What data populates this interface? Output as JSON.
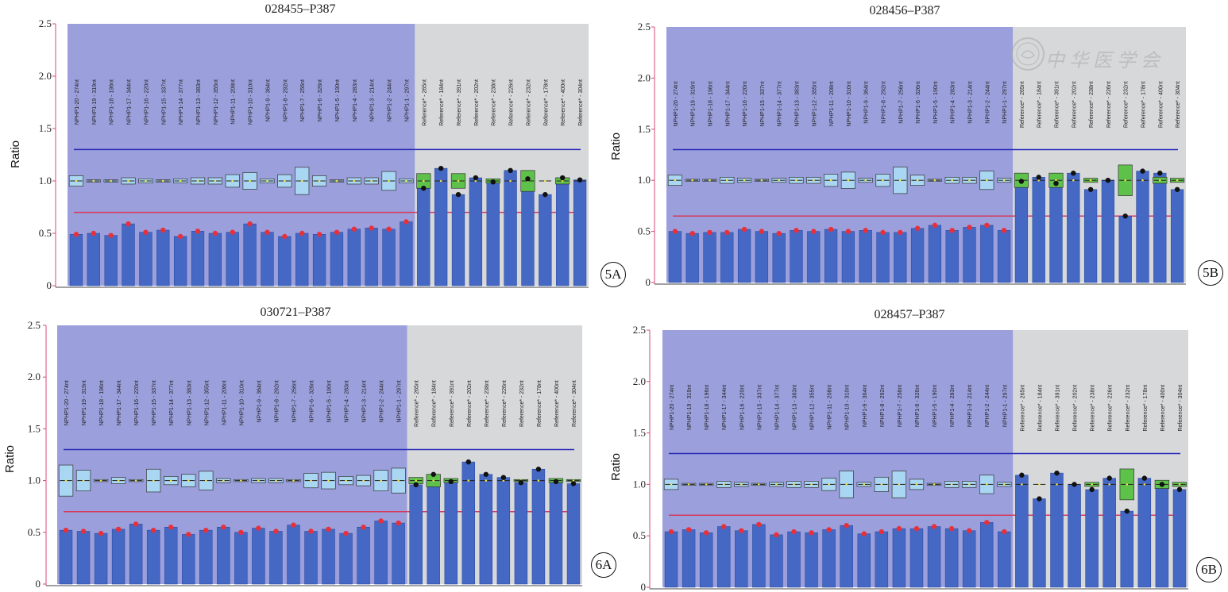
{
  "probe_labels": [
    "NPHP1-20 - 274nt",
    "NPHP1-19 - 319nt",
    "NPHP1-18 - 196nt",
    "NPHP1-17 - 344nt",
    "NPHP1-16 - 220nt",
    "NPHP1-15 - 337nt",
    "NPHP1-14 - 377nt",
    "NPHP1-13 - 383nt",
    "NPHP1-12 - 355nt",
    "NPHP1-11 - 208nt",
    "NPHP1-10 - 310nt",
    "NPHP1-9 - 364nt",
    "NPHP1-8 - 292nt",
    "NPHP1-7 - 256nt",
    "NPHP1-6 - 326nt",
    "NPHP1-5 - 190nt",
    "NPHP1-4 - 283nt",
    "NPHP1-3 - 214nt",
    "NPHP1-2 - 244nt",
    "NPHP1-1 - 297nt",
    "Reference* - 265nt",
    "Reference* - 184nt",
    "Reference* - 391nt",
    "Reference* - 202nt",
    "Reference* - 238nt",
    "Reference* - 226nt",
    "Reference* - 232nt",
    "Reference* - 178nt",
    "Reference* - 400nt",
    "Reference* - 304nt"
  ],
  "watermark": {
    "text": "中华医学会"
  },
  "colors": {
    "test_region": "#9b9fdb",
    "reference_region": "#d6d8da",
    "bar": "#4468c4",
    "upper_line": "#2b2bb8",
    "lower_line": "#d63a5a",
    "test_box": "#a9d6f2",
    "ref_box": "#5ec24a",
    "dot_test": "#e8303a",
    "dot_ref": "#111111"
  },
  "chart_data": [
    {
      "id": "5A",
      "type": "bar",
      "title": "028455–P387",
      "ylabel": "Ratio",
      "panel_label": "5A",
      "yticks": [
        "0",
        "0.5",
        "1.0",
        "1.5",
        "2.0",
        "2.5"
      ],
      "ylim": [
        0,
        2.5
      ],
      "upper_threshold": 1.3,
      "lower_threshold": 0.7,
      "n_test": 20,
      "values": [
        0.49,
        0.5,
        0.48,
        0.59,
        0.51,
        0.53,
        0.47,
        0.52,
        0.5,
        0.51,
        0.59,
        0.51,
        0.47,
        0.5,
        0.49,
        0.51,
        0.54,
        0.55,
        0.54,
        0.61,
        0.93,
        1.12,
        0.87,
        1.03,
        0.99,
        1.1,
        1.02,
        0.87,
        1.03,
        1.01
      ],
      "box_half": [
        0.05,
        0.01,
        0.01,
        0.03,
        0.02,
        0.01,
        0.02,
        0.03,
        0.03,
        0.06,
        0.08,
        0.02,
        0.06,
        0.13,
        0.05,
        0.01,
        0.03,
        0.03,
        0.09,
        0.02,
        0.07,
        0.0,
        0.07,
        0.0,
        0.02,
        0.0,
        0.1,
        0.0,
        0.03,
        0.0
      ]
    },
    {
      "id": "5B",
      "type": "bar",
      "title": "028456–P387",
      "ylabel": "Ratio",
      "panel_label": "5B",
      "yticks": [
        "0",
        "0.5",
        "1.0",
        "1.5",
        "2.0",
        "2.5"
      ],
      "ylim": [
        0,
        2.5
      ],
      "upper_threshold": 1.3,
      "lower_threshold": 0.65,
      "n_test": 20,
      "values": [
        0.5,
        0.48,
        0.49,
        0.49,
        0.52,
        0.5,
        0.48,
        0.51,
        0.5,
        0.52,
        0.5,
        0.51,
        0.49,
        0.49,
        0.53,
        0.56,
        0.51,
        0.54,
        0.56,
        0.51,
        0.99,
        1.03,
        0.97,
        1.07,
        0.91,
        1.0,
        0.65,
        1.09,
        1.07,
        0.91
      ],
      "box_half": [
        0.05,
        0.01,
        0.01,
        0.03,
        0.02,
        0.01,
        0.02,
        0.03,
        0.03,
        0.06,
        0.08,
        0.02,
        0.06,
        0.13,
        0.05,
        0.01,
        0.03,
        0.03,
        0.09,
        0.02,
        0.07,
        0.0,
        0.07,
        0.0,
        0.02,
        0.0,
        0.15,
        0.0,
        0.03,
        0.02
      ]
    },
    {
      "id": "6A",
      "type": "bar",
      "title": "030721–P387",
      "ylabel": "Ratio",
      "panel_label": "6A",
      "yticks": [
        "0",
        "0.5",
        "1.0",
        "1.5",
        "2.0",
        "2.5"
      ],
      "ylim": [
        0,
        2.5
      ],
      "upper_threshold": 1.3,
      "lower_threshold": 0.7,
      "n_test": 20,
      "values": [
        0.52,
        0.51,
        0.49,
        0.53,
        0.58,
        0.52,
        0.55,
        0.48,
        0.52,
        0.55,
        0.5,
        0.54,
        0.51,
        0.57,
        0.51,
        0.53,
        0.49,
        0.55,
        0.61,
        0.59,
        0.96,
        1.06,
        0.99,
        1.18,
        1.06,
        1.03,
        0.98,
        1.11,
        0.99,
        0.97
      ],
      "box_half": [
        0.15,
        0.1,
        0.01,
        0.03,
        0.01,
        0.11,
        0.04,
        0.06,
        0.09,
        0.02,
        0.01,
        0.02,
        0.02,
        0.01,
        0.07,
        0.08,
        0.04,
        0.05,
        0.1,
        0.12,
        0.03,
        0.06,
        0.02,
        0.0,
        0.0,
        0.0,
        0.01,
        0.0,
        0.02,
        0.01
      ]
    },
    {
      "id": "6B",
      "type": "bar",
      "title": "028457–P387",
      "ylabel": "Ratio",
      "panel_label": "6B",
      "yticks": [
        "0",
        "0.5",
        "1.0",
        "1.5",
        "2.0",
        "2.5"
      ],
      "ylim": [
        0,
        2.5
      ],
      "upper_threshold": 1.3,
      "lower_threshold": 0.7,
      "n_test": 20,
      "values": [
        0.54,
        0.56,
        0.53,
        0.59,
        0.55,
        0.61,
        0.51,
        0.54,
        0.53,
        0.56,
        0.6,
        0.52,
        0.54,
        0.57,
        0.57,
        0.59,
        0.57,
        0.55,
        0.63,
        0.54,
        1.09,
        0.86,
        1.11,
        1.0,
        0.95,
        1.06,
        0.74,
        1.06,
        1.0,
        0.95
      ],
      "box_half": [
        0.05,
        0.01,
        0.01,
        0.03,
        0.02,
        0.01,
        0.02,
        0.03,
        0.03,
        0.06,
        0.13,
        0.02,
        0.07,
        0.13,
        0.05,
        0.01,
        0.03,
        0.03,
        0.09,
        0.02,
        0.0,
        0.0,
        0.0,
        0.0,
        0.02,
        0.0,
        0.15,
        0.0,
        0.04,
        0.02
      ]
    }
  ]
}
